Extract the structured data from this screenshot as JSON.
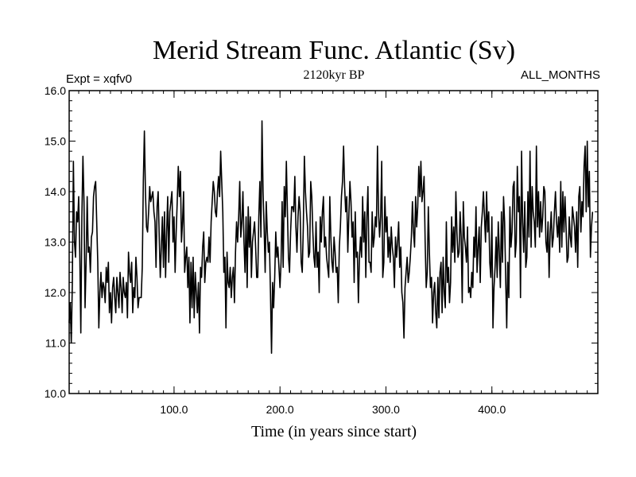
{
  "chart_data": {
    "type": "line",
    "title": "Merid Stream Func. Atlantic (Sv)",
    "subtitle": "2120kyr BP",
    "left_label": "Expt = xqfv0",
    "right_label": "ALL_MONTHS",
    "xlabel": "Time (in years since start)",
    "ylabel": "",
    "xlim": [
      1,
      500
    ],
    "ylim": [
      10.0,
      16.0
    ],
    "x_ticks": [
      100,
      200,
      300,
      400
    ],
    "x_tick_labels": [
      "100.0",
      "200.0",
      "300.0",
      "400.0"
    ],
    "y_ticks": [
      10,
      11,
      12,
      13,
      14,
      15,
      16
    ],
    "y_tick_labels": [
      "10.0",
      "11.0",
      "12.0",
      "13.0",
      "14.0",
      "15.0",
      "16.0"
    ],
    "series": [
      {
        "name": "Merid Stream Func. Atlantic",
        "color": "#000000",
        "x_start": 1,
        "x_step": 1,
        "values": [
          11.4,
          11.8,
          11.0,
          12.2,
          14.6,
          13.0,
          12.7,
          13.6,
          13.4,
          13.9,
          12.8,
          11.2,
          13.5,
          14.7,
          13.8,
          11.7,
          12.6,
          13.9,
          12.8,
          12.9,
          12.4,
          13.1,
          13.2,
          13.9,
          14.1,
          14.2,
          13.4,
          12.6,
          11.3,
          12.0,
          12.4,
          11.9,
          12.2,
          12.1,
          11.8,
          12.5,
          12.2,
          12.6,
          11.6,
          12.0,
          11.4,
          12.1,
          12.3,
          11.9,
          11.6,
          12.3,
          12.0,
          11.7,
          12.4,
          12.1,
          11.6,
          12.3,
          12.0,
          11.9,
          12.2,
          11.5,
          12.8,
          12.4,
          12.2,
          12.6,
          11.6,
          12.1,
          11.9,
          12.7,
          12.3,
          11.7,
          11.9,
          11.9,
          11.9,
          12.5,
          14.2,
          15.2,
          14.0,
          13.3,
          13.2,
          13.6,
          14.1,
          13.8,
          13.9,
          14.0,
          13.6,
          13.4,
          12.5,
          13.7,
          14.0,
          13.1,
          12.3,
          12.9,
          13.5,
          12.5,
          13.6,
          12.3,
          13.2,
          13.9,
          12.6,
          13.6,
          13.8,
          14.0,
          13.0,
          13.5,
          12.4,
          13.2,
          13.8,
          14.5,
          13.9,
          14.4,
          13.0,
          13.4,
          14.0,
          12.4,
          12.7,
          12.9,
          12.1,
          12.7,
          11.4,
          12.6,
          11.7,
          12.7,
          11.5,
          12.4,
          12.0,
          11.6,
          12.2,
          11.2,
          12.5,
          12.3,
          12.9,
          13.2,
          12.2,
          12.6,
          12.7,
          12.6,
          13.1,
          12.6,
          13.4,
          13.8,
          14.2,
          14.0,
          13.6,
          13.5,
          14.0,
          14.3,
          13.9,
          14.8,
          14.2,
          13.6,
          12.4,
          12.7,
          11.3,
          12.8,
          12.2,
          12.1,
          12.5,
          11.9,
          12.3,
          12.5,
          11.8,
          12.8,
          13.4,
          13.0,
          13.5,
          14.2,
          13.1,
          13.4,
          14.0,
          13.0,
          12.4,
          13.5,
          12.1,
          13.7,
          12.9,
          13.5,
          12.3,
          13.0,
          13.2,
          13.4,
          12.9,
          12.3,
          12.3,
          13.5,
          14.2,
          13.1,
          15.4,
          14.0,
          13.3,
          12.4,
          13.8,
          13.2,
          12.8,
          13.0,
          12.0,
          10.8,
          12.2,
          11.7,
          12.3,
          13.2,
          12.7,
          12.9,
          12.5,
          12.1,
          12.6,
          13.8,
          12.5,
          14.1,
          13.5,
          14.6,
          13.6,
          12.7,
          12.4,
          13.2,
          13.7,
          13.7,
          13.6,
          14.3,
          13.3,
          12.8,
          13.5,
          13.9,
          13.6,
          12.6,
          12.4,
          13.3,
          14.7,
          14.0,
          13.6,
          13.3,
          12.7,
          12.8,
          14.2,
          13.9,
          13.2,
          12.7,
          12.5,
          13.4,
          12.5,
          12.8,
          12.0,
          13.5,
          13.0,
          13.6,
          13.9,
          12.9,
          13.1,
          12.7,
          12.5,
          12.3,
          13.9,
          13.1,
          12.6,
          12.4,
          13.1,
          12.8,
          12.4,
          12.5,
          11.8,
          12.9,
          13.3,
          13.9,
          14.2,
          14.9,
          14.1,
          13.6,
          13.9,
          12.8,
          13.5,
          14.2,
          13.8,
          13.1,
          13.4,
          12.2,
          13.6,
          12.7,
          12.8,
          11.8,
          12.7,
          13.1,
          12.7,
          13.9,
          13.0,
          13.6,
          12.3,
          13.5,
          14.1,
          12.6,
          12.6,
          12.4,
          13.6,
          12.9,
          13.1,
          13.5,
          13.3,
          14.9,
          13.6,
          13.1,
          13.5,
          14.6,
          12.3,
          12.6,
          13.9,
          13.2,
          13.5,
          12.7,
          13.1,
          12.6,
          13.3,
          12.9,
          12.7,
          12.1,
          13.1,
          12.7,
          13.0,
          13.4,
          12.5,
          12.9,
          12.0,
          11.8,
          11.1,
          12.1,
          12.4,
          12.7,
          12.2,
          12.4,
          12.7,
          13.1,
          13.8,
          13.2,
          12.9,
          13.9,
          13.3,
          13.7,
          14.5,
          13.9,
          14.6,
          13.8,
          14.0,
          14.3,
          13.0,
          12.1,
          12.4,
          13.7,
          12.8,
          12.1,
          12.3,
          11.4,
          12.0,
          12.2,
          11.6,
          11.3,
          12.3,
          11.5,
          12.4,
          12.6,
          11.6,
          12.7,
          12.0,
          11.7,
          13.4,
          12.2,
          12.5,
          11.8,
          12.2,
          13.5,
          12.8,
          13.3,
          12.6,
          14.0,
          13.2,
          12.7,
          12.8,
          13.6,
          13.1,
          11.8,
          13.8,
          13.1,
          12.9,
          12.6,
          13.3,
          12.0,
          12.1,
          11.9,
          12.4,
          12.1,
          13.1,
          12.7,
          13.7,
          12.4,
          12.9,
          13.3,
          12.2,
          13.3,
          13.6,
          14.0,
          13.5,
          13.0,
          14.0,
          13.2,
          13.6,
          12.6,
          12.3,
          13.5,
          11.3,
          12.1,
          12.5,
          13.1,
          12.3,
          13.4,
          12.8,
          12.1,
          13.6,
          12.6,
          13.9,
          13.4,
          12.3,
          11.3,
          12.6,
          11.9,
          13.7,
          12.9,
          13.2,
          14.1,
          14.2,
          12.7,
          13.0,
          14.5,
          13.6,
          13.9,
          11.9,
          14.8,
          13.4,
          12.8,
          13.8,
          12.5,
          12.7,
          14.0,
          13.1,
          14.8,
          12.9,
          14.1,
          13.6,
          13.4,
          12.9,
          14.9,
          13.3,
          14.0,
          13.1,
          13.8,
          13.2,
          13.5,
          14.1,
          14.0,
          13.0,
          12.8,
          13.4,
          12.3,
          13.2,
          13.6,
          12.9,
          13.1,
          13.6,
          14.0,
          13.4,
          13.1,
          13.5,
          12.8,
          14.2,
          12.9,
          14.0,
          13.2,
          13.9,
          13.3,
          12.6,
          12.7,
          13.5,
          13.1,
          12.9,
          13.7,
          13.5,
          13.3,
          12.8,
          13.6,
          12.5,
          13.9,
          14.1,
          13.2,
          13.8,
          13.5,
          14.5,
          14.9,
          13.6,
          15.0,
          13.7,
          14.4,
          12.7,
          13.3,
          13.6
        ]
      }
    ]
  }
}
